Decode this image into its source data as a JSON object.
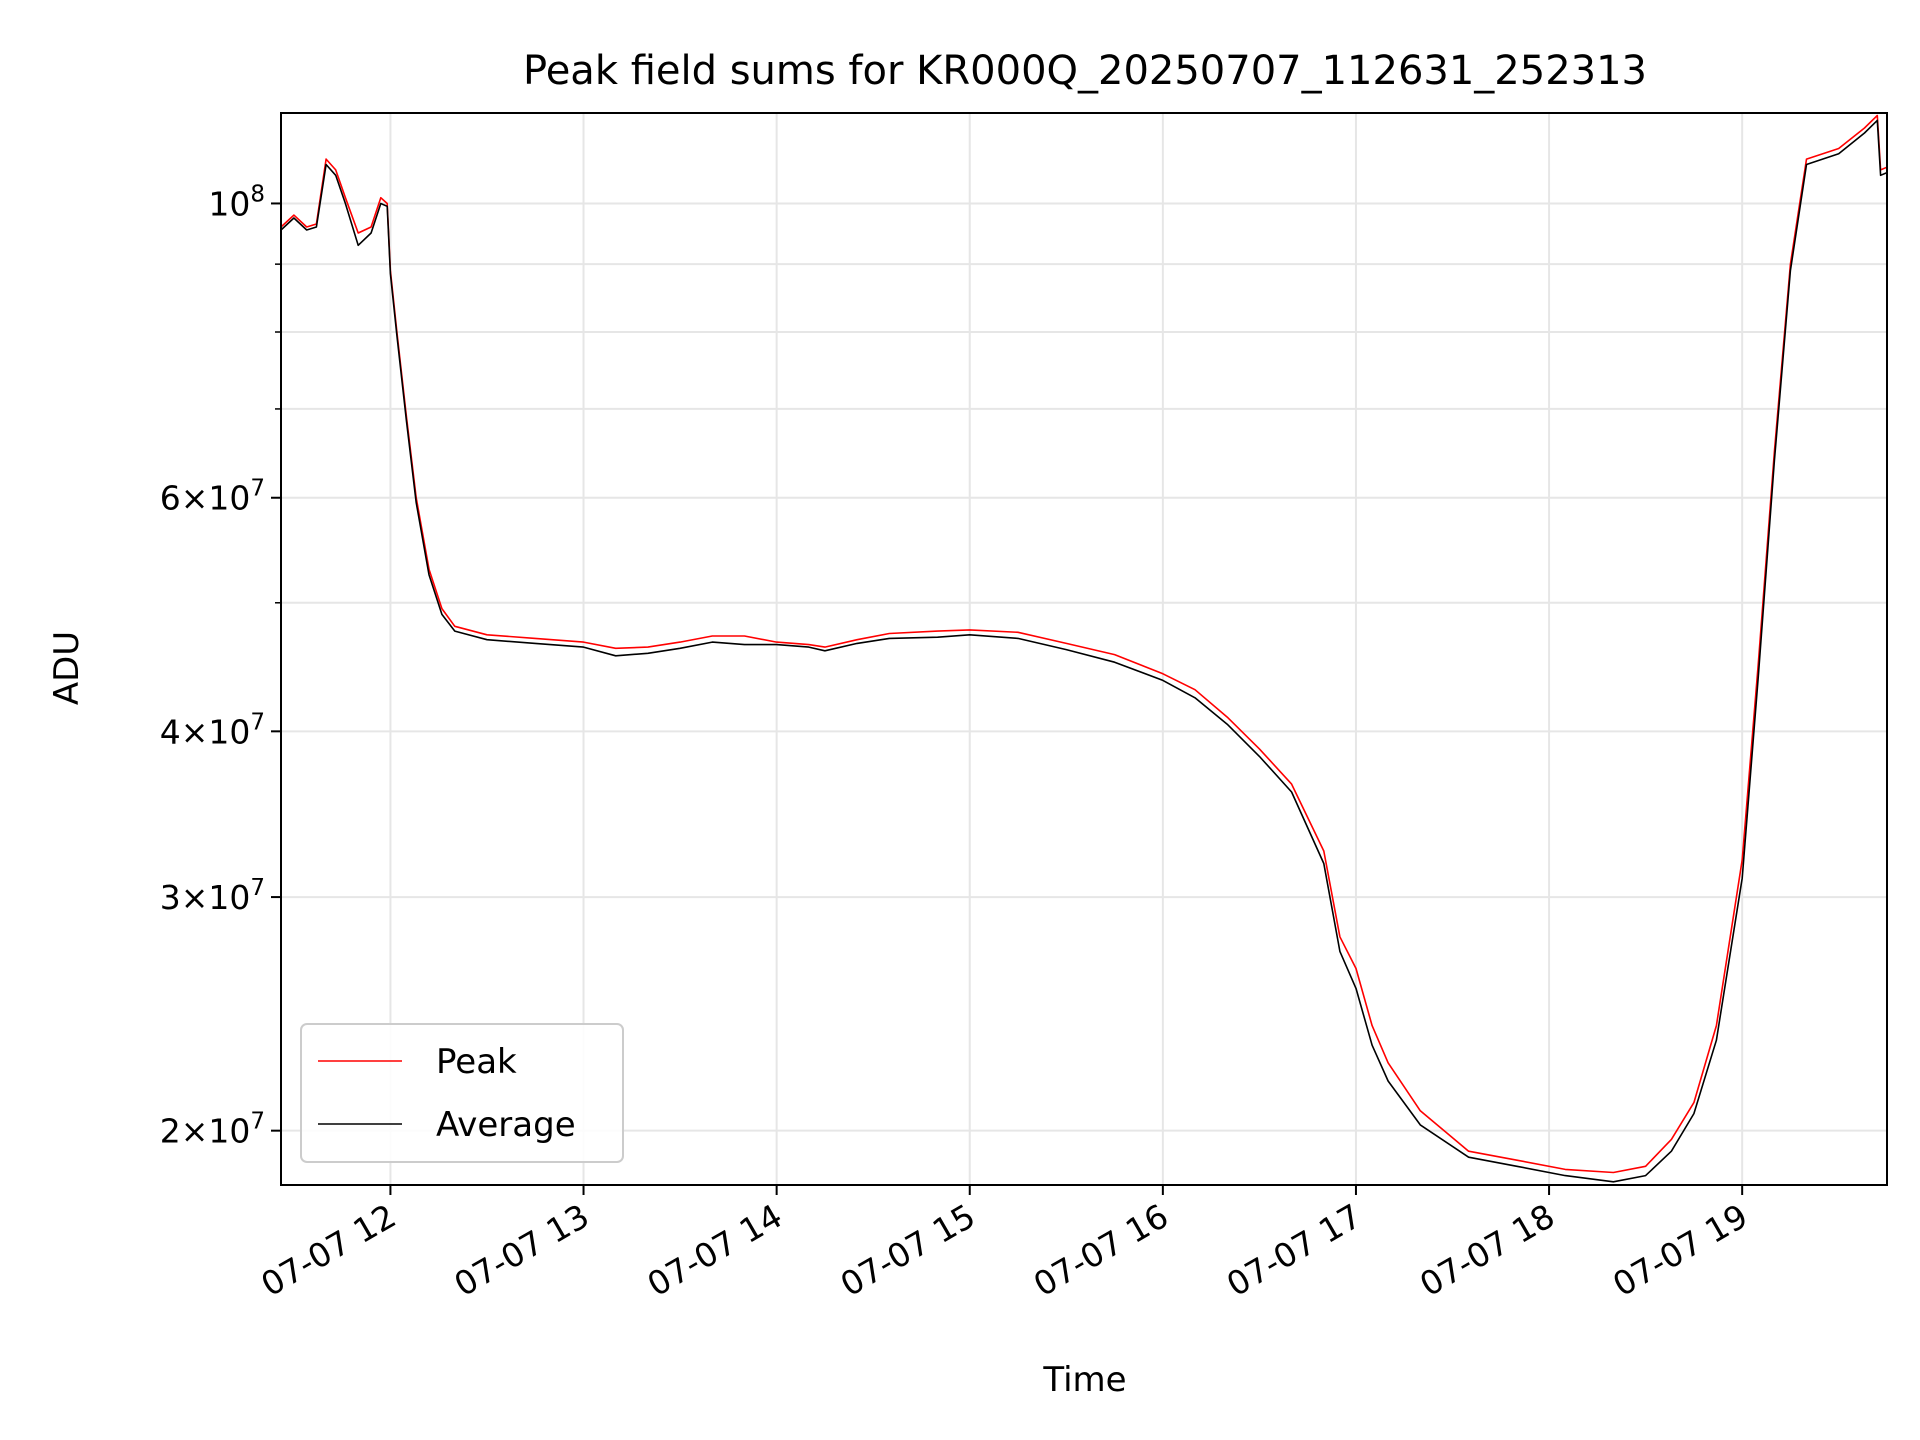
{
  "chart_data": {
    "type": "line",
    "title": "Peak field sums for KR000Q_20250707_112631_252313",
    "xlabel": "Time",
    "ylabel": "ADU",
    "yscale": "log",
    "grid": true,
    "legend_position": "lower-left",
    "xlim": [
      "2025-07-07 11:26",
      "2025-07-07 19:45"
    ],
    "ylim": [
      18200000,
      117000000
    ],
    "x_ticks": [
      {
        "value": "2025-07-07 12:00",
        "label": "07-07 12"
      },
      {
        "value": "2025-07-07 13:00",
        "label": "07-07 13"
      },
      {
        "value": "2025-07-07 14:00",
        "label": "07-07 14"
      },
      {
        "value": "2025-07-07 15:00",
        "label": "07-07 15"
      },
      {
        "value": "2025-07-07 16:00",
        "label": "07-07 16"
      },
      {
        "value": "2025-07-07 17:00",
        "label": "07-07 17"
      },
      {
        "value": "2025-07-07 18:00",
        "label": "07-07 18"
      },
      {
        "value": "2025-07-07 19:00",
        "label": "07-07 19"
      }
    ],
    "y_major_ticks": [
      {
        "value": 100000000,
        "base": "10",
        "exp": "8"
      },
      {
        "value": 60000000,
        "base": "6×10",
        "exp": "7"
      },
      {
        "value": 40000000,
        "base": "4×10",
        "exp": "7"
      },
      {
        "value": 30000000,
        "base": "3×10",
        "exp": "7"
      },
      {
        "value": 20000000,
        "base": "2×10",
        "exp": "7"
      }
    ],
    "y_minor_ticks": [
      50000000,
      70000000,
      80000000,
      90000000
    ],
    "series": [
      {
        "name": "Peak",
        "color": "#ff0000",
        "points": [
          [
            "2025-07-07 11:26",
            96000000
          ],
          [
            "2025-07-07 11:30",
            98000000
          ],
          [
            "2025-07-07 11:34",
            96000000
          ],
          [
            "2025-07-07 11:37",
            96500000
          ],
          [
            "2025-07-07 11:40",
            108000000
          ],
          [
            "2025-07-07 11:43",
            106000000
          ],
          [
            "2025-07-07 11:46",
            101000000
          ],
          [
            "2025-07-07 11:50",
            95000000
          ],
          [
            "2025-07-07 11:54",
            96000000
          ],
          [
            "2025-07-07 11:57",
            101000000
          ],
          [
            "2025-07-07 11:59",
            100000000
          ],
          [
            "2025-07-07 12:00",
            89000000
          ],
          [
            "2025-07-07 12:02",
            80000000
          ],
          [
            "2025-07-07 12:05",
            69000000
          ],
          [
            "2025-07-07 12:08",
            60000000
          ],
          [
            "2025-07-07 12:12",
            53000000
          ],
          [
            "2025-07-07 12:16",
            49500000
          ],
          [
            "2025-07-07 12:20",
            48000000
          ],
          [
            "2025-07-07 12:30",
            47300000
          ],
          [
            "2025-07-07 12:45",
            47000000
          ],
          [
            "2025-07-07 13:00",
            46700000
          ],
          [
            "2025-07-07 13:10",
            46200000
          ],
          [
            "2025-07-07 13:20",
            46300000
          ],
          [
            "2025-07-07 13:30",
            46700000
          ],
          [
            "2025-07-07 13:40",
            47200000
          ],
          [
            "2025-07-07 13:50",
            47200000
          ],
          [
            "2025-07-07 14:00",
            46700000
          ],
          [
            "2025-07-07 14:10",
            46500000
          ],
          [
            "2025-07-07 14:15",
            46300000
          ],
          [
            "2025-07-07 14:25",
            46900000
          ],
          [
            "2025-07-07 14:35",
            47400000
          ],
          [
            "2025-07-07 14:50",
            47600000
          ],
          [
            "2025-07-07 15:00",
            47700000
          ],
          [
            "2025-07-07 15:15",
            47500000
          ],
          [
            "2025-07-07 15:30",
            46600000
          ],
          [
            "2025-07-07 15:45",
            45700000
          ],
          [
            "2025-07-07 16:00",
            44200000
          ],
          [
            "2025-07-07 16:10",
            43000000
          ],
          [
            "2025-07-07 16:20",
            41000000
          ],
          [
            "2025-07-07 16:30",
            38800000
          ],
          [
            "2025-07-07 16:40",
            36500000
          ],
          [
            "2025-07-07 16:50",
            32500000
          ],
          [
            "2025-07-07 16:55",
            28000000
          ],
          [
            "2025-07-07 17:00",
            26500000
          ],
          [
            "2025-07-07 17:05",
            24000000
          ],
          [
            "2025-07-07 17:10",
            22500000
          ],
          [
            "2025-07-07 17:20",
            20700000
          ],
          [
            "2025-07-07 17:35",
            19300000
          ],
          [
            "2025-07-07 17:50",
            19000000
          ],
          [
            "2025-07-07 18:05",
            18700000
          ],
          [
            "2025-07-07 18:20",
            18600000
          ],
          [
            "2025-07-07 18:30",
            18800000
          ],
          [
            "2025-07-07 18:38",
            19700000
          ],
          [
            "2025-07-07 18:45",
            21000000
          ],
          [
            "2025-07-07 18:52",
            24000000
          ],
          [
            "2025-07-07 19:00",
            32000000
          ],
          [
            "2025-07-07 19:05",
            45000000
          ],
          [
            "2025-07-07 19:10",
            65000000
          ],
          [
            "2025-07-07 19:15",
            90000000
          ],
          [
            "2025-07-07 19:20",
            108000000
          ],
          [
            "2025-07-07 19:30",
            110000000
          ],
          [
            "2025-07-07 19:38",
            114000000
          ],
          [
            "2025-07-07 19:42",
            116500000
          ],
          [
            "2025-07-07 19:43",
            106000000
          ],
          [
            "2025-07-07 19:45",
            106500000
          ]
        ]
      },
      {
        "name": "Average",
        "color": "#000000",
        "points": [
          [
            "2025-07-07 11:26",
            95500000
          ],
          [
            "2025-07-07 11:30",
            97500000
          ],
          [
            "2025-07-07 11:34",
            95500000
          ],
          [
            "2025-07-07 11:37",
            96000000
          ],
          [
            "2025-07-07 11:40",
            107000000
          ],
          [
            "2025-07-07 11:43",
            105000000
          ],
          [
            "2025-07-07 11:46",
            100000000
          ],
          [
            "2025-07-07 11:50",
            93000000
          ],
          [
            "2025-07-07 11:54",
            95000000
          ],
          [
            "2025-07-07 11:57",
            100000000
          ],
          [
            "2025-07-07 11:59",
            99500000
          ],
          [
            "2025-07-07 12:00",
            88500000
          ],
          [
            "2025-07-07 12:02",
            79500000
          ],
          [
            "2025-07-07 12:05",
            68500000
          ],
          [
            "2025-07-07 12:08",
            59500000
          ],
          [
            "2025-07-07 12:12",
            52500000
          ],
          [
            "2025-07-07 12:16",
            49000000
          ],
          [
            "2025-07-07 12:20",
            47600000
          ],
          [
            "2025-07-07 12:30",
            46900000
          ],
          [
            "2025-07-07 12:45",
            46600000
          ],
          [
            "2025-07-07 13:00",
            46300000
          ],
          [
            "2025-07-07 13:10",
            45600000
          ],
          [
            "2025-07-07 13:20",
            45800000
          ],
          [
            "2025-07-07 13:30",
            46200000
          ],
          [
            "2025-07-07 13:40",
            46700000
          ],
          [
            "2025-07-07 13:50",
            46500000
          ],
          [
            "2025-07-07 14:00",
            46500000
          ],
          [
            "2025-07-07 14:10",
            46300000
          ],
          [
            "2025-07-07 14:15",
            46000000
          ],
          [
            "2025-07-07 14:25",
            46600000
          ],
          [
            "2025-07-07 14:35",
            47000000
          ],
          [
            "2025-07-07 14:50",
            47100000
          ],
          [
            "2025-07-07 15:00",
            47300000
          ],
          [
            "2025-07-07 15:15",
            47000000
          ],
          [
            "2025-07-07 15:30",
            46100000
          ],
          [
            "2025-07-07 15:45",
            45100000
          ],
          [
            "2025-07-07 16:00",
            43700000
          ],
          [
            "2025-07-07 16:10",
            42400000
          ],
          [
            "2025-07-07 16:20",
            40500000
          ],
          [
            "2025-07-07 16:30",
            38300000
          ],
          [
            "2025-07-07 16:40",
            36000000
          ],
          [
            "2025-07-07 16:50",
            31800000
          ],
          [
            "2025-07-07 16:55",
            27300000
          ],
          [
            "2025-07-07 17:00",
            25600000
          ],
          [
            "2025-07-07 17:05",
            23200000
          ],
          [
            "2025-07-07 17:10",
            21800000
          ],
          [
            "2025-07-07 17:20",
            20200000
          ],
          [
            "2025-07-07 17:35",
            19100000
          ],
          [
            "2025-07-07 17:50",
            18800000
          ],
          [
            "2025-07-07 18:05",
            18500000
          ],
          [
            "2025-07-07 18:20",
            18300000
          ],
          [
            "2025-07-07 18:30",
            18500000
          ],
          [
            "2025-07-07 18:38",
            19300000
          ],
          [
            "2025-07-07 18:45",
            20600000
          ],
          [
            "2025-07-07 18:52",
            23400000
          ],
          [
            "2025-07-07 19:00",
            31000000
          ],
          [
            "2025-07-07 19:05",
            44000000
          ],
          [
            "2025-07-07 19:10",
            64000000
          ],
          [
            "2025-07-07 19:15",
            89000000
          ],
          [
            "2025-07-07 19:20",
            107000000
          ],
          [
            "2025-07-07 19:30",
            109000000
          ],
          [
            "2025-07-07 19:38",
            113000000
          ],
          [
            "2025-07-07 19:42",
            115500000
          ],
          [
            "2025-07-07 19:43",
            105000000
          ],
          [
            "2025-07-07 19:45",
            105500000
          ]
        ]
      }
    ]
  }
}
